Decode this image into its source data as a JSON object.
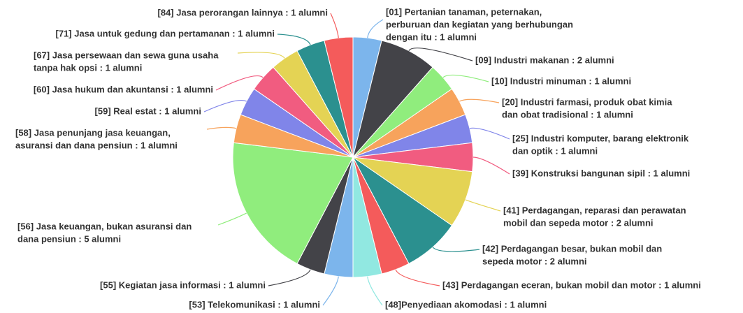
{
  "chart_data": {
    "type": "pie",
    "labels": [
      [
        "[01] Pertanian tanaman, peternakan,",
        "perburuan dan kegiatan yang berhubungan",
        "dengan itu  : 1 alumni"
      ],
      [
        "[09] Industri makanan  : 2 alumni"
      ],
      [
        "[10] Industri minuman  : 1 alumni"
      ],
      [
        "[20] Industri farmasi, produk obat kimia",
        "dan obat tradisional  : 1 alumni"
      ],
      [
        "[25] Industri komputer, barang elektronik",
        "dan optik  : 1 alumni"
      ],
      [
        "[39] Konstruksi bangunan sipil  : 1 alumni"
      ],
      [
        "[41] Perdagangan, reparasi dan perawatan",
        "mobil dan sepeda motor  : 2 alumni"
      ],
      [
        "[42] Perdagangan besar, bukan mobil dan",
        "sepeda motor  : 2 alumni"
      ],
      [
        "[43] Perdagangan eceran, bukan mobil dan motor : 1 alumni"
      ],
      [
        "[48]Penyediaan akomodasi : 1 alumni"
      ],
      [
        "[53] Telekomunikasi : 1 alumni"
      ],
      [
        "[55] Kegiatan jasa informasi : 1 alumni"
      ],
      [
        "[56] Jasa keuangan, bukan asuransi dan",
        "dana pensiun : 5 alumni"
      ],
      [
        "[58] Jasa penunjang jasa keuangan,",
        "asuransi dan dana pensiun : 1 alumni"
      ],
      [
        "[59] Real estat : 1 alumni"
      ],
      [
        "[60] Jasa hukum dan akuntansi : 1 alumni"
      ],
      [
        "[67] Jasa persewaan dan sewa guna usaha",
        "tanpa hak opsi : 1 alumni"
      ],
      [
        "[71] Jasa untuk gedung dan pertamanan : 1 alumni"
      ],
      [
        "[84] Jasa perorangan lainnya : 1 alumni"
      ]
    ],
    "values": [
      1,
      2,
      1,
      1,
      1,
      1,
      2,
      2,
      1,
      1,
      1,
      1,
      5,
      1,
      1,
      1,
      1,
      1,
      1
    ],
    "colors": [
      "#7cb5ec",
      "#434348",
      "#90ed7d",
      "#f7a35c",
      "#8085e9",
      "#f15c80",
      "#e4d354",
      "#2b908f",
      "#f45b5b",
      "#91e8e1",
      "#7cb5ec",
      "#434348",
      "#90ed7d",
      "#f7a35c",
      "#8085e9",
      "#f15c80",
      "#e4d354",
      "#2b908f",
      "#f45b5b"
    ]
  }
}
